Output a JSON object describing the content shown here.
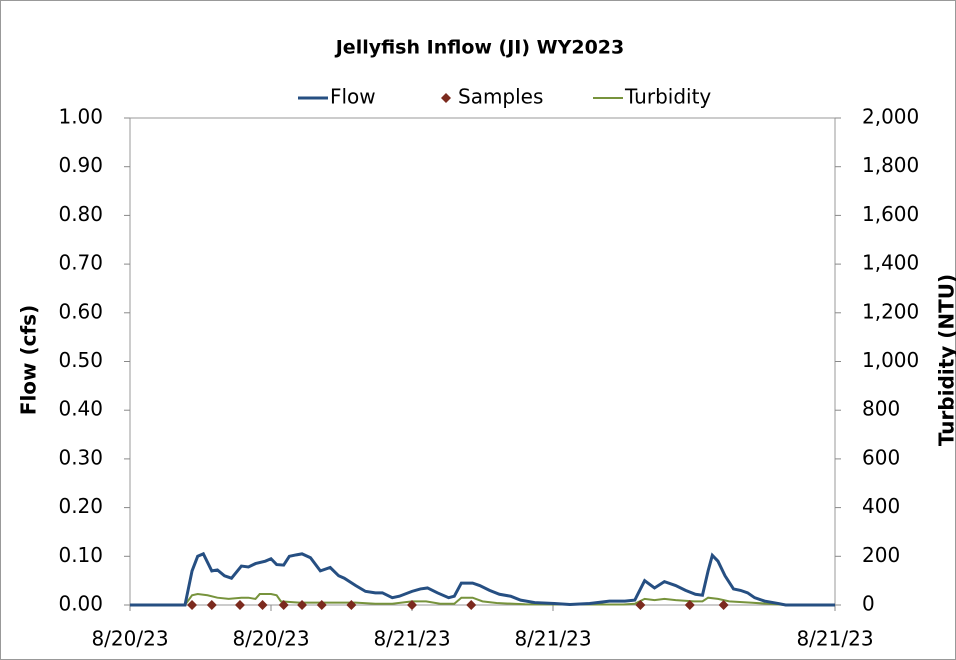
{
  "chart_data": {
    "type": "line",
    "title": "Jellyfish Inflow (JI)  WY2023",
    "ylabel": "Flow (cfs)",
    "y2label": "Turbidity (NTU)",
    "xlim": [
      0,
      5
    ],
    "xticks": [
      {
        "value": 0,
        "label": "8/20/23"
      },
      {
        "value": 1,
        "label": "8/20/23"
      },
      {
        "value": 2,
        "label": "8/21/23"
      },
      {
        "value": 3,
        "label": "8/21/23"
      },
      {
        "value": 5,
        "label": "8/21/23"
      }
    ],
    "ylim": [
      0,
      1
    ],
    "yticks": [
      {
        "value": 0,
        "label": "0.00"
      },
      {
        "value": 0.1,
        "label": "0.10"
      },
      {
        "value": 0.2,
        "label": "0.20"
      },
      {
        "value": 0.3,
        "label": "0.30"
      },
      {
        "value": 0.4,
        "label": "0.40"
      },
      {
        "value": 0.5,
        "label": "0.50"
      },
      {
        "value": 0.6,
        "label": "0.60"
      },
      {
        "value": 0.7,
        "label": "0.70"
      },
      {
        "value": 0.8,
        "label": "0.80"
      },
      {
        "value": 0.9,
        "label": "0.90"
      },
      {
        "value": 1,
        "label": "1.00"
      }
    ],
    "y2lim": [
      0,
      2000
    ],
    "y2ticks": [
      0,
      200,
      400,
      600,
      800,
      {
        "value": 1000,
        "label": "1,000"
      },
      {
        "value": 1200,
        "label": "1,200"
      },
      {
        "value": 1400,
        "label": "1,400"
      },
      {
        "value": 1600,
        "label": "1,600"
      },
      {
        "value": 1800,
        "label": "1,800"
      },
      {
        "value": 2000,
        "label": "2,000"
      }
    ],
    "series": [
      {
        "name": "Flow",
        "type": "line",
        "color": "#264f82",
        "x": [
          0,
          0.39,
          0.44,
          0.48,
          0.52,
          0.58,
          0.62,
          0.67,
          0.72,
          0.79,
          0.84,
          0.89,
          0.96,
          1.0,
          1.04,
          1.09,
          1.13,
          1.18,
          1.22,
          1.28,
          1.35,
          1.42,
          1.48,
          1.52,
          1.6,
          1.67,
          1.74,
          1.79,
          1.86,
          1.91,
          2.0,
          2.06,
          2.11,
          2.18,
          2.26,
          2.3,
          2.35,
          2.43,
          2.48,
          2.55,
          2.62,
          2.7,
          2.77,
          2.87,
          3.01,
          3.12,
          3.26,
          3.4,
          3.51,
          3.58,
          3.65,
          3.72,
          3.79,
          3.87,
          3.94,
          4.01,
          4.06,
          4.1,
          4.13,
          4.17,
          4.22,
          4.28,
          4.33,
          4.38,
          4.43,
          4.5,
          4.6,
          4.65,
          5
        ],
        "values": [
          0,
          0,
          0.07,
          0.1,
          0.105,
          0.07,
          0.072,
          0.06,
          0.055,
          0.08,
          0.078,
          0.085,
          0.09,
          0.095,
          0.083,
          0.082,
          0.1,
          0.103,
          0.105,
          0.097,
          0.07,
          0.077,
          0.06,
          0.055,
          0.04,
          0.028,
          0.025,
          0.025,
          0.015,
          0.018,
          0.028,
          0.033,
          0.035,
          0.025,
          0.015,
          0.018,
          0.045,
          0.045,
          0.04,
          0.03,
          0.022,
          0.018,
          0.01,
          0.005,
          0.003,
          0.001,
          0.003,
          0.008,
          0.008,
          0.01,
          0.05,
          0.035,
          0.048,
          0.04,
          0.03,
          0.022,
          0.02,
          0.07,
          0.102,
          0.09,
          0.06,
          0.033,
          0.03,
          0.025,
          0.015,
          0.008,
          0.003,
          0,
          0
        ]
      },
      {
        "name": "Samples",
        "type": "scatter",
        "color": "#7b2a1e",
        "x": [
          0.44,
          0.58,
          0.78,
          0.94,
          1.09,
          1.22,
          1.36,
          1.57,
          2.0,
          2.42,
          3.62,
          3.97,
          4.21
        ],
        "values": [
          0,
          0,
          0,
          0,
          0,
          0,
          0,
          0,
          0,
          0,
          0,
          0,
          0
        ]
      },
      {
        "name": "Turbidity",
        "type": "line",
        "axis": "y2",
        "color": "#77933c",
        "x": [
          0,
          0.39,
          0.44,
          0.48,
          0.55,
          0.62,
          0.7,
          0.79,
          0.84,
          0.89,
          0.92,
          1.0,
          1.04,
          1.07,
          1.2,
          1.5,
          1.6,
          1.74,
          1.86,
          2.0,
          2.1,
          2.2,
          2.3,
          2.35,
          2.43,
          2.5,
          2.6,
          2.8,
          3.0,
          3.5,
          3.58,
          3.65,
          3.72,
          3.79,
          3.87,
          4.0,
          4.06,
          4.1,
          4.17,
          4.25,
          4.4,
          4.6,
          4.65,
          5
        ],
        "values": [
          0,
          0,
          40,
          45,
          40,
          30,
          25,
          30,
          30,
          25,
          45,
          45,
          40,
          15,
          10,
          10,
          10,
          5,
          5,
          15,
          15,
          5,
          5,
          30,
          30,
          15,
          8,
          3,
          2,
          2,
          5,
          25,
          20,
          25,
          20,
          15,
          15,
          30,
          25,
          15,
          10,
          2,
          0,
          0
        ]
      }
    ]
  }
}
